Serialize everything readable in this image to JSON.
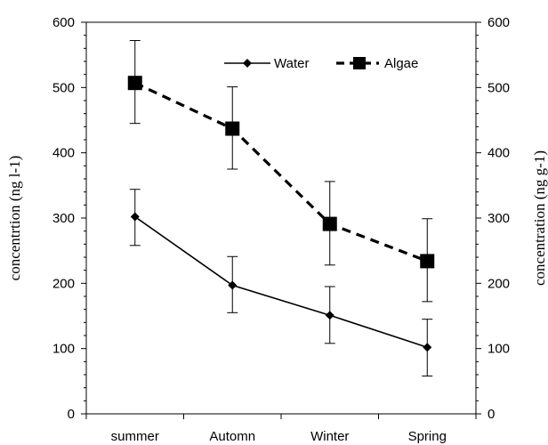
{
  "chart_data": {
    "type": "line",
    "categories": [
      "summer",
      "Automn",
      "Winter",
      "Spring"
    ],
    "ylim": [
      0,
      600
    ],
    "yticks": [
      0,
      100,
      200,
      300,
      400,
      500,
      600
    ],
    "ylabel_left": "concentrtion (ng l-1)",
    "ylabel_right": "concentration (ng g-1)",
    "grid": false,
    "legend_position": "top-right",
    "series": [
      {
        "name": "Water",
        "values": [
          302,
          197,
          151,
          102
        ],
        "error": [
          [
            258,
            344
          ],
          [
            155,
            241
          ],
          [
            108,
            195
          ],
          [
            58,
            145
          ]
        ],
        "marker": "diamond",
        "line_style": "solid",
        "color": "#000000"
      },
      {
        "name": "Algae",
        "values": [
          507,
          437,
          291,
          234
        ],
        "error": [
          [
            445,
            572
          ],
          [
            375,
            501
          ],
          [
            228,
            356
          ],
          [
            172,
            299
          ]
        ],
        "marker": "square",
        "line_style": "dashed",
        "color": "#000000"
      }
    ]
  }
}
